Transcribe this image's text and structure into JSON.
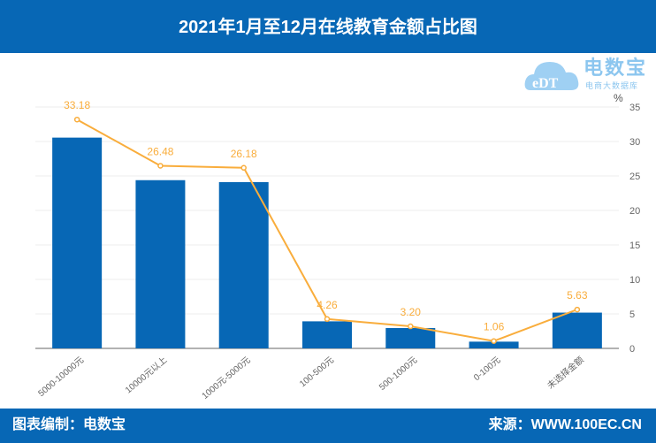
{
  "header": {
    "title": "2021年1月至12月在线教育金额占比图"
  },
  "logo": {
    "name": "电数宝",
    "subtitle": "电商大数据库",
    "mark": "eDT"
  },
  "footer": {
    "left": "图表编制：电数宝",
    "right": "来源：WWW.100EC.CN"
  },
  "colors": {
    "bar": "#0767b5",
    "line": "#f9ad3c",
    "header": "#0767b5"
  },
  "chart_data": {
    "type": "bar+line",
    "title": "2021年1月至12月在线教育金额占比图",
    "unit": "%",
    "categories": [
      "5000-10000元",
      "10000元以上",
      "1000元-5000元",
      "100-500元",
      "500-1000元",
      "0-100元",
      "未选择金额"
    ],
    "series": [
      {
        "name": "bar",
        "type": "bar",
        "values": [
          33.18,
          26.48,
          26.18,
          4.26,
          3.2,
          1.06,
          5.63
        ],
        "axis": "hidden-left",
        "ylim": [
          0,
          38
        ]
      },
      {
        "name": "line",
        "type": "line",
        "values": [
          33.18,
          26.48,
          26.18,
          4.26,
          3.2,
          1.06,
          5.63
        ],
        "labels": [
          "33.18",
          "26.48",
          "26.18",
          "4.26",
          "3.20",
          "1.06",
          "5.63"
        ],
        "axis": "right"
      }
    ],
    "ylim": [
      0,
      35
    ],
    "yticks": [
      0,
      5,
      10,
      15,
      20,
      25,
      30,
      35
    ],
    "grid": true
  }
}
